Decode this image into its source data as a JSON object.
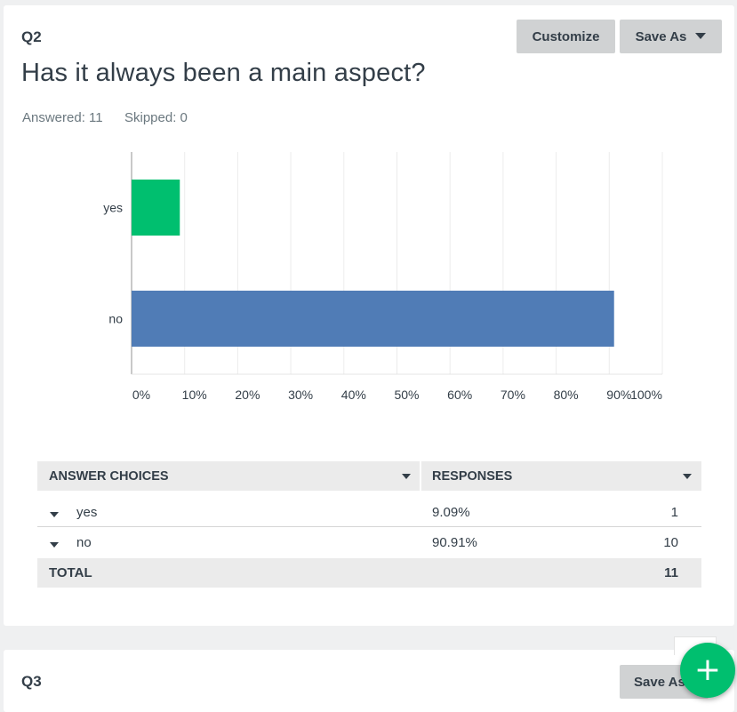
{
  "q2": {
    "number": "Q2",
    "title": "Has it always been a main aspect?",
    "answered": "Answered: 11",
    "skipped": "Skipped: 0",
    "buttons": {
      "customize": "Customize",
      "save_as": "Save As"
    }
  },
  "chart_data": {
    "type": "bar",
    "orientation": "horizontal",
    "categories": [
      "yes",
      "no"
    ],
    "values": [
      9.09,
      90.91
    ],
    "colors": [
      "#00bf6f",
      "#507cb6"
    ],
    "xlim": [
      0,
      100
    ],
    "x_ticks": [
      "0%",
      "10%",
      "20%",
      "30%",
      "40%",
      "50%",
      "60%",
      "70%",
      "80%",
      "90%",
      "100%"
    ],
    "grid": true
  },
  "table": {
    "headers": [
      "ANSWER CHOICES",
      "RESPONSES"
    ],
    "rows": [
      {
        "choice": "yes",
        "percent": "9.09%",
        "count": "1"
      },
      {
        "choice": "no",
        "percent": "90.91%",
        "count": "10"
      }
    ],
    "total_label": "TOTAL",
    "total_value": "11"
  },
  "q3": {
    "number": "Q3",
    "save_as": "Save As"
  },
  "fab": {
    "icon": "plus-icon",
    "symbol": "+"
  }
}
